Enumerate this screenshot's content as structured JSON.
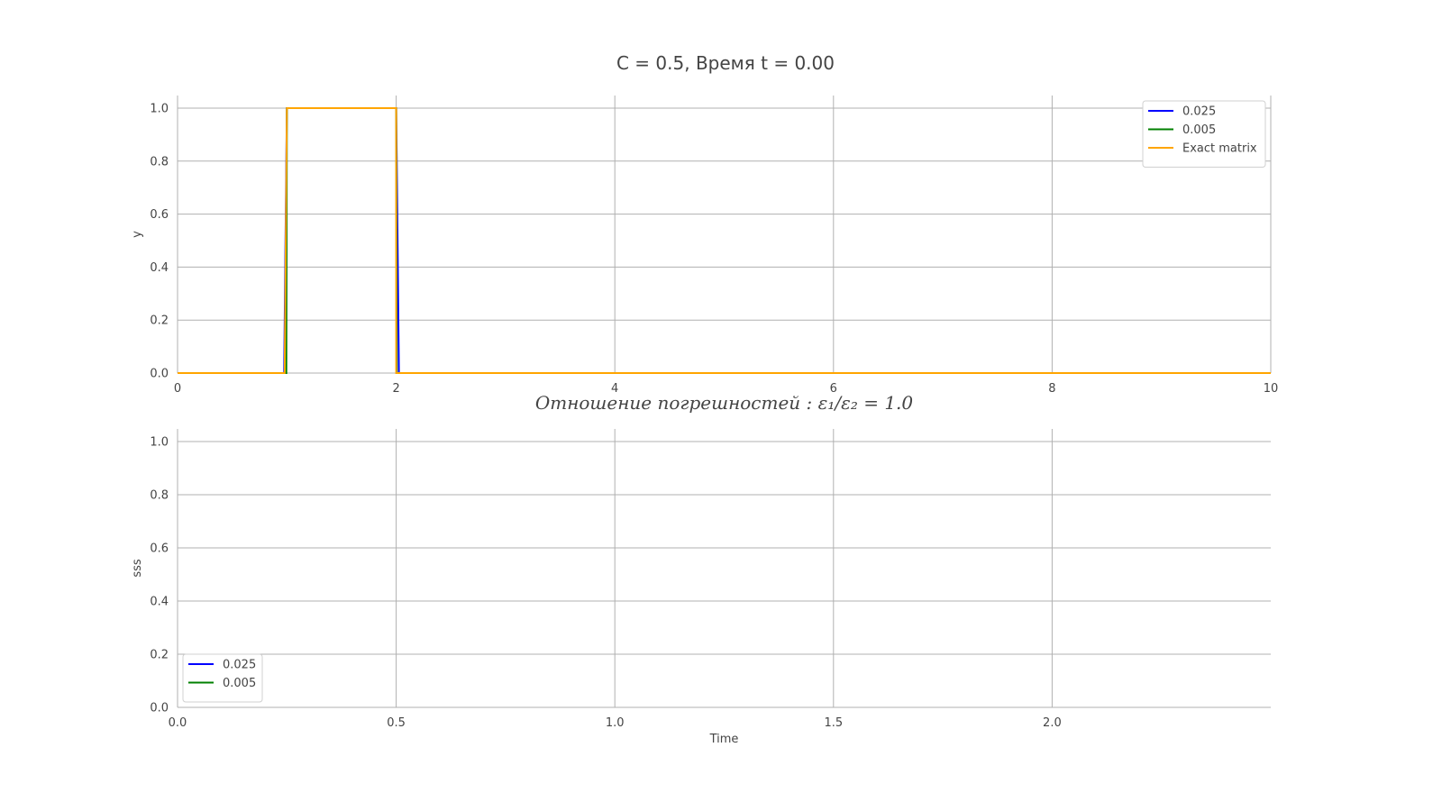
{
  "figure": {
    "title": "C = 0.5, Время t = 0.00"
  },
  "chart_data": [
    {
      "type": "line",
      "title": "",
      "xlabel": "",
      "ylabel": "y",
      "xlim": [
        0,
        10
      ],
      "ylim": [
        0,
        1.0
      ],
      "xticks": [
        "0",
        "2",
        "4",
        "6",
        "8",
        "10"
      ],
      "yticks": [
        "0.0",
        "0.2",
        "0.4",
        "0.6",
        "0.8",
        "1.0"
      ],
      "grid": true,
      "legend_position": "top-right",
      "series": [
        {
          "name": "0.025",
          "color": "#0000ff",
          "x": [
            0,
            0.975,
            1.0,
            2.0,
            2.025,
            10
          ],
          "y": [
            0,
            0,
            1,
            1,
            0,
            0
          ]
        },
        {
          "name": "0.005",
          "color": "#008000",
          "x": [
            0,
            0.995,
            1.0,
            2.0,
            2.005,
            10
          ],
          "y": [
            0,
            0,
            1,
            1,
            0,
            0
          ]
        },
        {
          "name": "Exact matrix",
          "color": "#ffa500",
          "x": [
            0,
            0.98,
            1.0,
            2.0,
            2.0,
            10
          ],
          "y": [
            0,
            0,
            1,
            1,
            0,
            0
          ]
        }
      ]
    },
    {
      "type": "line",
      "title": "Отношение погрешностей : ε₁/ε₂ = 1.0",
      "xlabel": "Time",
      "ylabel": "sss",
      "xlim": [
        0,
        2.5
      ],
      "ylim": [
        0,
        1.0
      ],
      "xticks": [
        "0.0",
        "0.5",
        "1.0",
        "1.5",
        "2.0"
      ],
      "yticks": [
        "0.0",
        "0.2",
        "0.4",
        "0.6",
        "0.8",
        "1.0"
      ],
      "grid": true,
      "legend_position": "bottom-left",
      "series": [
        {
          "name": "0.025",
          "color": "#0000ff",
          "x": [],
          "y": []
        },
        {
          "name": "0.005",
          "color": "#008000",
          "x": [],
          "y": []
        }
      ]
    }
  ]
}
